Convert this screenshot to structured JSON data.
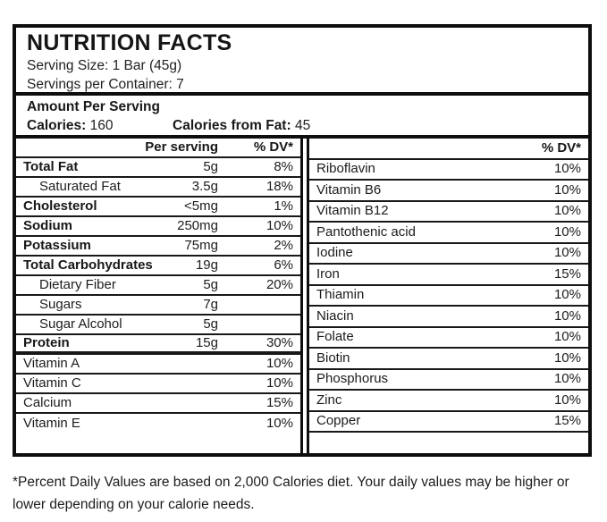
{
  "label": {
    "title": "NUTRITION FACTS",
    "serving_size": "Serving Size: 1 Bar (45g)",
    "servings_per_container": "Servings per Container: 7",
    "amount_per_serving": "Amount Per Serving",
    "calories_label": "Calories:",
    "calories_value": "160",
    "calories_from_fat_label": "Calories from Fat:",
    "calories_from_fat_value": "45"
  },
  "left_table": {
    "header": {
      "per_serving": "Per serving",
      "dv": "% DV*"
    },
    "rows": [
      {
        "name": "Total Fat",
        "amount": "5g",
        "dv": "8%",
        "bold": true
      },
      {
        "name": "Saturated Fat",
        "amount": "3.5g",
        "dv": "18%",
        "indent": true
      },
      {
        "name": "Cholesterol",
        "amount": "<5mg",
        "dv": "1%",
        "bold": true
      },
      {
        "name": "Sodium",
        "amount": "250mg",
        "dv": "10%",
        "bold": true
      },
      {
        "name": "Potassium",
        "amount": "75mg",
        "dv": "2%",
        "bold": true
      },
      {
        "name": "Total Carbohydrates",
        "amount": "19g",
        "dv": "6%",
        "bold": true
      },
      {
        "name": "Dietary Fiber",
        "amount": "5g",
        "dv": "20%",
        "indent": true
      },
      {
        "name": "Sugars",
        "amount": "7g",
        "dv": "",
        "indent": true
      },
      {
        "name": "Sugar Alcohol",
        "amount": "5g",
        "dv": "",
        "indent": true
      },
      {
        "name": "Protein",
        "amount": "15g",
        "dv": "30%",
        "bold": true,
        "thick_bottom": true
      },
      {
        "name": "Vitamin A",
        "amount": "",
        "dv": "10%"
      },
      {
        "name": "Vitamin C",
        "amount": "",
        "dv": "10%"
      },
      {
        "name": "Calcium",
        "amount": "",
        "dv": "15%"
      },
      {
        "name": "Vitamin E",
        "amount": "",
        "dv": "10%"
      }
    ]
  },
  "right_table": {
    "header": {
      "dv": "% DV*"
    },
    "rows": [
      {
        "name": "Riboflavin",
        "dv": "10%"
      },
      {
        "name": "Vitamin B6",
        "dv": "10%"
      },
      {
        "name": "Vitamin B12",
        "dv": "10%"
      },
      {
        "name": "Pantothenic acid",
        "dv": "10%"
      },
      {
        "name": "Iodine",
        "dv": "10%"
      },
      {
        "name": "Iron",
        "dv": "15%"
      },
      {
        "name": "Thiamin",
        "dv": "10%"
      },
      {
        "name": "Niacin",
        "dv": "10%"
      },
      {
        "name": "Folate",
        "dv": "10%"
      },
      {
        "name": "Biotin",
        "dv": "10%"
      },
      {
        "name": "Phosphorus",
        "dv": "10%"
      },
      {
        "name": "Zinc",
        "dv": "10%"
      },
      {
        "name": "Copper",
        "dv": "15%"
      }
    ]
  },
  "footnote": "*Percent Daily Values are based on 2,000 Calories diet. Your daily values may be higher or lower depending on your calorie needs.",
  "colors": {
    "border": "#0e0e0e",
    "text": "#1c1c1c",
    "background": "#ffffff"
  }
}
